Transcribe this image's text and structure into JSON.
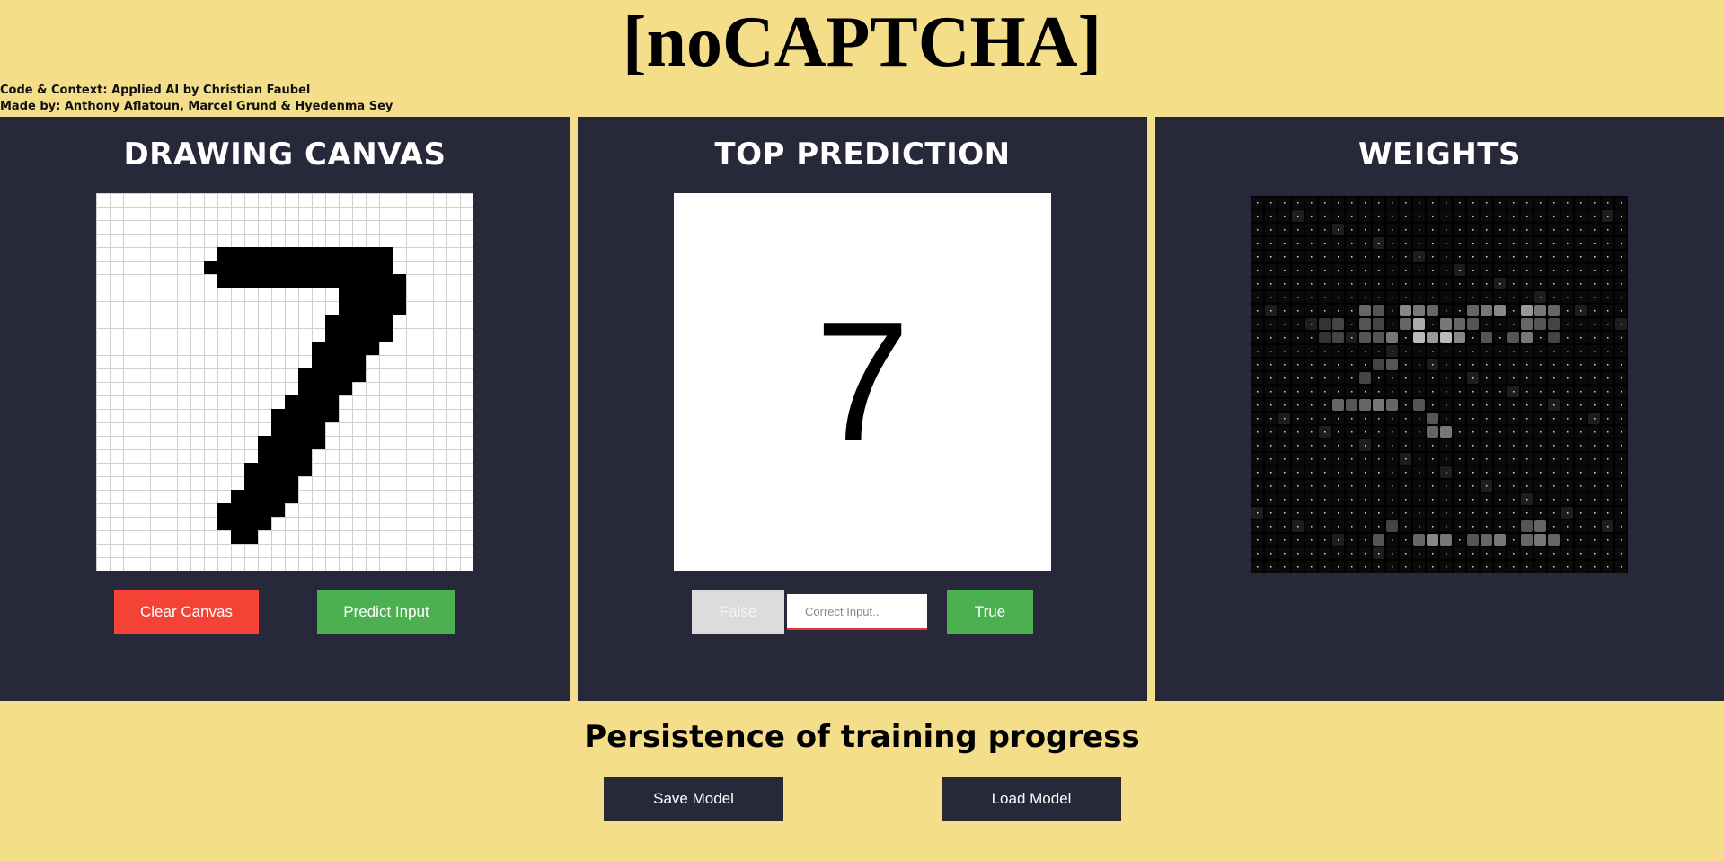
{
  "app": {
    "title": "[noCAPTCHA]",
    "credits": [
      "Code & Context: Applied AI by Christian Faubel",
      "Made by: Anthony Aflatoun, Marcel Grund & Hyedenma Sey"
    ]
  },
  "drawing": {
    "heading": "DRAWING CANVAS",
    "clear_label": "Clear Canvas",
    "predict_label": "Predict Input",
    "grid_cells": 28
  },
  "prediction": {
    "heading": "TOP PREDICTION",
    "digit": "7",
    "false_label": "False",
    "input_placeholder": "Correct Input..",
    "true_label": "True"
  },
  "weights": {
    "heading": "WEIGHTS",
    "grid_cells": 28
  },
  "persistence": {
    "heading": "Persistence of training progress",
    "save_label": "Save Model",
    "load_label": "Load Model"
  },
  "colors": {
    "background": "#f4de8a",
    "panel": "#272839",
    "danger": "#f44336",
    "success": "#4caf50",
    "disabled": "#dcdcdc"
  }
}
